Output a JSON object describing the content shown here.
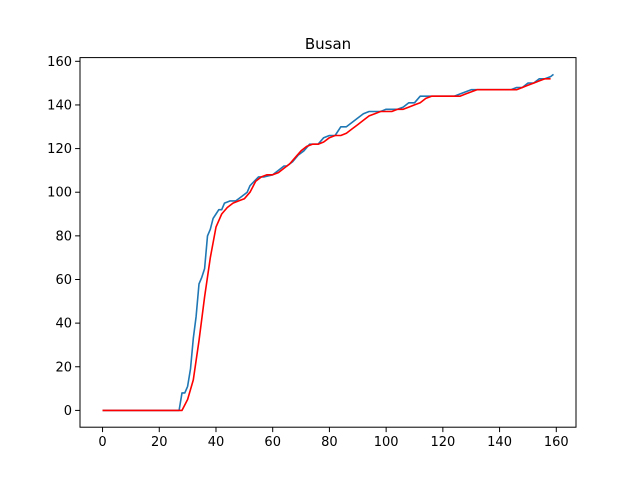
{
  "chart_data": {
    "type": "line",
    "title": "Busan",
    "xlabel": "",
    "ylabel": "",
    "xlim": [
      -7.95,
      166.95
    ],
    "ylim": [
      -7.7,
      161.7
    ],
    "xticks": [
      0,
      20,
      40,
      60,
      80,
      100,
      120,
      140,
      160
    ],
    "yticks": [
      0,
      20,
      40,
      60,
      80,
      100,
      120,
      140,
      160
    ],
    "grid": false,
    "legend": "none",
    "series": [
      {
        "color": "#1f77b4",
        "x": [
          0,
          27,
          28,
          29,
          30,
          31,
          32,
          33,
          34,
          35,
          36,
          37,
          38,
          39,
          40,
          41,
          42,
          43,
          45,
          47,
          49,
          51,
          52,
          55,
          57,
          60,
          62,
          64,
          65,
          67,
          69,
          71,
          73,
          75,
          76,
          78,
          80,
          82,
          84,
          86,
          88,
          90,
          92,
          94,
          96,
          98,
          100,
          102,
          104,
          106,
          108,
          110,
          112,
          114,
          116,
          118,
          120,
          122,
          124,
          126,
          128,
          130,
          132,
          135,
          138,
          141,
          144,
          146,
          148,
          150,
          152,
          154,
          156,
          158,
          159
        ],
        "values": [
          0,
          0,
          8,
          8,
          11,
          19,
          33,
          43,
          58,
          61,
          65,
          80,
          83,
          88,
          90,
          92,
          92,
          95,
          96,
          96,
          98,
          100,
          103,
          107,
          107,
          108,
          110,
          112,
          112,
          114,
          117,
          119,
          122,
          122,
          122,
          125,
          126,
          126,
          130,
          130,
          132,
          134,
          136,
          137,
          137,
          137,
          138,
          138,
          138,
          139,
          141,
          141,
          144,
          144,
          144,
          144,
          144,
          144,
          144,
          145,
          146,
          147,
          147,
          147,
          147,
          147,
          147,
          148,
          148,
          150,
          150,
          152,
          152,
          153,
          154
        ]
      },
      {
        "color": "#ff0000",
        "x": [
          0,
          28,
          30,
          32,
          34,
          36,
          38,
          40,
          42,
          44,
          46,
          48,
          50,
          52,
          54,
          56,
          58,
          60,
          62,
          64,
          66,
          68,
          70,
          72,
          74,
          76,
          78,
          80,
          82,
          84,
          86,
          88,
          90,
          92,
          94,
          96,
          98,
          100,
          102,
          104,
          106,
          108,
          110,
          112,
          114,
          116,
          118,
          120,
          122,
          124,
          126,
          128,
          130,
          132,
          134,
          136,
          138,
          140,
          142,
          144,
          146,
          148,
          150,
          152,
          154,
          156,
          158
        ],
        "values": [
          0,
          0,
          5,
          14,
          32,
          52,
          70,
          84,
          90,
          93,
          95,
          96,
          97,
          100,
          105,
          107,
          108,
          108,
          109,
          111,
          113,
          116,
          119,
          121,
          122,
          122,
          123,
          125,
          126,
          126,
          127,
          129,
          131,
          133,
          135,
          136,
          137,
          137,
          137,
          138,
          138,
          139,
          140,
          141,
          143,
          144,
          144,
          144,
          144,
          144,
          144,
          145,
          146,
          147,
          147,
          147,
          147,
          147,
          147,
          147,
          147,
          148,
          149,
          150,
          151,
          152,
          152
        ]
      }
    ]
  }
}
